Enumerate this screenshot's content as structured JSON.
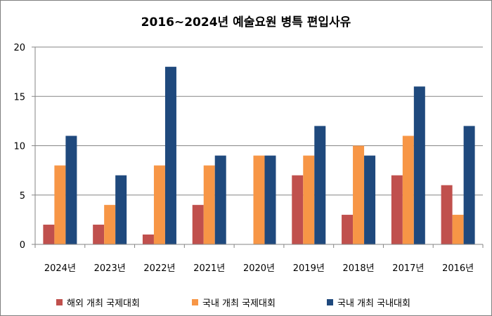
{
  "chart_data": {
    "type": "bar",
    "title": "2016~2024년 예술요원 병특 편입사유",
    "xlabel": "",
    "ylabel": "",
    "ylim": [
      0,
      20
    ],
    "yticks": [
      0,
      5,
      10,
      15,
      20
    ],
    "grid": true,
    "legend_position": "bottom",
    "categories": [
      "2024년",
      "2023년",
      "2022년",
      "2021년",
      "2020년",
      "2019년",
      "2018년",
      "2017년",
      "2016년"
    ],
    "series": [
      {
        "name": "해외 개최 국제대회",
        "color": "#c0504d",
        "values": [
          2,
          2,
          1,
          4,
          0,
          7,
          3,
          7,
          6
        ]
      },
      {
        "name": "국내 개최 국제대회",
        "color": "#f79646",
        "values": [
          8,
          4,
          8,
          8,
          9,
          9,
          10,
          11,
          3
        ]
      },
      {
        "name": "국내 개최 국내대회",
        "color": "#1f497d",
        "values": [
          11,
          7,
          18,
          9,
          9,
          12,
          9,
          16,
          12
        ]
      }
    ]
  }
}
